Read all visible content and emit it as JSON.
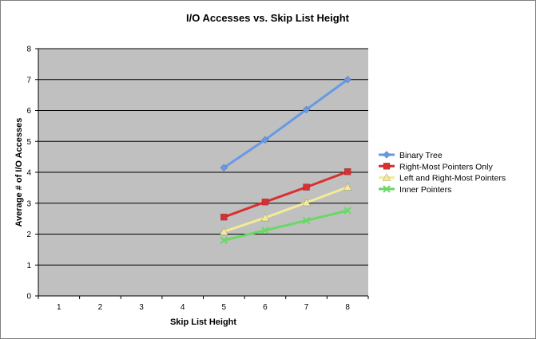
{
  "chart_data": {
    "type": "line",
    "title": "I/O Accesses vs. Skip List Height",
    "xlabel": "Skip List Height",
    "ylabel": "Average # of I/O Accesses",
    "categories": [
      "1",
      "2",
      "3",
      "4",
      "5",
      "6",
      "7",
      "8"
    ],
    "ylim": [
      0,
      8
    ],
    "yticks": [
      0,
      1,
      2,
      3,
      4,
      5,
      6,
      7,
      8
    ],
    "grid": "horizontal",
    "legend_position": "right",
    "plot_background": "#c0c0c0",
    "series": [
      {
        "name": "Binary Tree",
        "color": "#6699e6",
        "marker": "diamond",
        "x": [
          5,
          6,
          7,
          8
        ],
        "values": [
          4.15,
          5.05,
          6.03,
          7.0
        ]
      },
      {
        "name": "Right-Most Pointers Only",
        "color": "#d93030",
        "marker": "square",
        "x": [
          5,
          6,
          7,
          8
        ],
        "values": [
          2.55,
          3.04,
          3.52,
          4.02
        ]
      },
      {
        "name": "Left and Right-Most Pointers",
        "color": "#f2eb99",
        "marker": "triangle",
        "x": [
          5,
          6,
          7,
          8
        ],
        "values": [
          2.08,
          2.53,
          3.02,
          3.52
        ]
      },
      {
        "name": "Inner Pointers",
        "color": "#66d966",
        "marker": "x",
        "x": [
          5,
          6,
          7,
          8
        ],
        "values": [
          1.8,
          2.12,
          2.44,
          2.76
        ]
      }
    ]
  }
}
